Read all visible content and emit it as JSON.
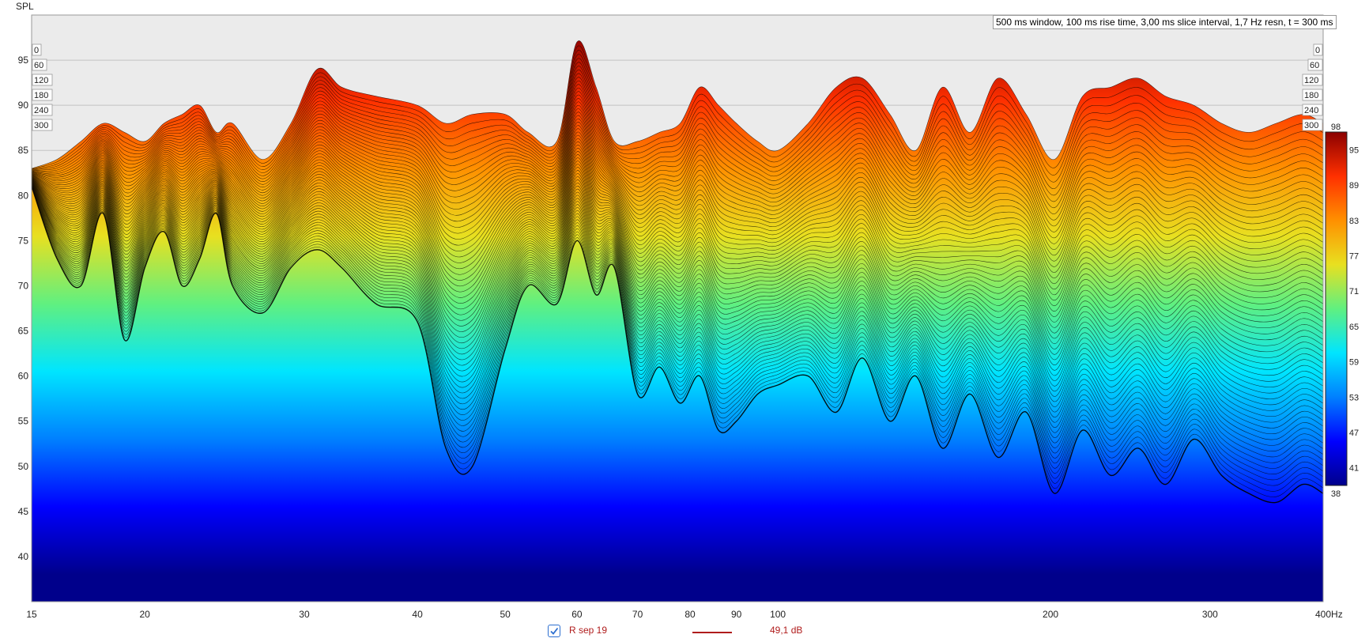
{
  "chart_data": {
    "type": "area",
    "subtype": "waterfall",
    "ylabel": "SPL",
    "xunit": "Hz",
    "x_scale": "log",
    "xlim": [
      15,
      400
    ],
    "ylim": [
      35,
      100
    ],
    "grid": true,
    "x_ticks": [
      15,
      20,
      30,
      40,
      50,
      60,
      70,
      80,
      90,
      100,
      200,
      300,
      400
    ],
    "x_tick_labels": [
      "15",
      "20",
      "30",
      "40",
      "50",
      "60",
      "70",
      "80",
      "90",
      "100",
      "200",
      "300",
      "400Hz"
    ],
    "y_ticks": [
      40,
      45,
      50,
      55,
      60,
      65,
      70,
      75,
      80,
      85,
      90,
      95
    ],
    "time_axis_labels": [
      "0",
      "60",
      "120",
      "180",
      "240",
      "300"
    ],
    "info": "500 ms window, 100 ms rise time, 3,00 ms slice interval, 1,7 Hz resn, t = 300 ms",
    "colorscale": {
      "min": 38,
      "max": 98,
      "labels": [
        "98",
        "95",
        "89",
        "83",
        "77",
        "71",
        "65",
        "59",
        "53",
        "47",
        "41",
        "38"
      ],
      "stops": [
        "#00008b",
        "#0000ff",
        "#0080ff",
        "#00e5ff",
        "#60f080",
        "#e8e020",
        "#ff9000",
        "#ff3000",
        "#8b0000"
      ]
    },
    "front_slice": {
      "x": [
        15,
        16,
        17,
        18,
        19,
        20,
        21,
        22,
        23,
        24,
        25,
        27,
        29,
        31,
        33,
        36,
        40,
        43,
        46,
        50,
        53,
        57,
        60,
        63,
        66,
        70,
        74,
        78,
        82,
        86,
        90,
        95,
        100,
        108,
        116,
        124,
        133,
        142,
        152,
        163,
        175,
        188,
        202,
        217,
        233,
        250,
        268,
        288,
        309,
        331,
        355,
        380,
        400
      ],
      "y": [
        81,
        73,
        70,
        78,
        64,
        72,
        76,
        70,
        73,
        78,
        70,
        67,
        72,
        74,
        72,
        68,
        66,
        52,
        50,
        63,
        70,
        68,
        75,
        69,
        72,
        58,
        61,
        57,
        60,
        54,
        55,
        58,
        59,
        60,
        56,
        62,
        55,
        60,
        52,
        58,
        51,
        56,
        47,
        54,
        49,
        52,
        48,
        53,
        49,
        47,
        46,
        48,
        47
      ]
    },
    "peak_slice": {
      "x": [
        15,
        16,
        17,
        18,
        19,
        20,
        21,
        22,
        23,
        24,
        25,
        27,
        29,
        31,
        33,
        36,
        40,
        43,
        46,
        50,
        53,
        57,
        60,
        63,
        66,
        70,
        74,
        78,
        82,
        86,
        90,
        95,
        100,
        108,
        116,
        124,
        133,
        142,
        152,
        163,
        175,
        188,
        202,
        217,
        233,
        250,
        268,
        288,
        309,
        331,
        355,
        380,
        400
      ],
      "y": [
        83,
        84,
        86,
        88,
        87,
        86,
        88,
        89,
        90,
        87,
        88,
        84,
        88,
        94,
        92,
        91,
        90,
        88,
        89,
        89,
        87,
        86,
        97,
        92,
        86,
        86,
        87,
        88,
        92,
        90,
        88,
        86,
        85,
        88,
        92,
        93,
        89,
        85,
        92,
        87,
        93,
        89,
        84,
        91,
        92,
        93,
        91,
        90,
        88,
        87,
        88,
        89,
        88
      ]
    },
    "series": [
      {
        "name": "R sep 19",
        "value_label": "49,1 dB",
        "color": "#b01c1c",
        "visible": true
      }
    ]
  }
}
